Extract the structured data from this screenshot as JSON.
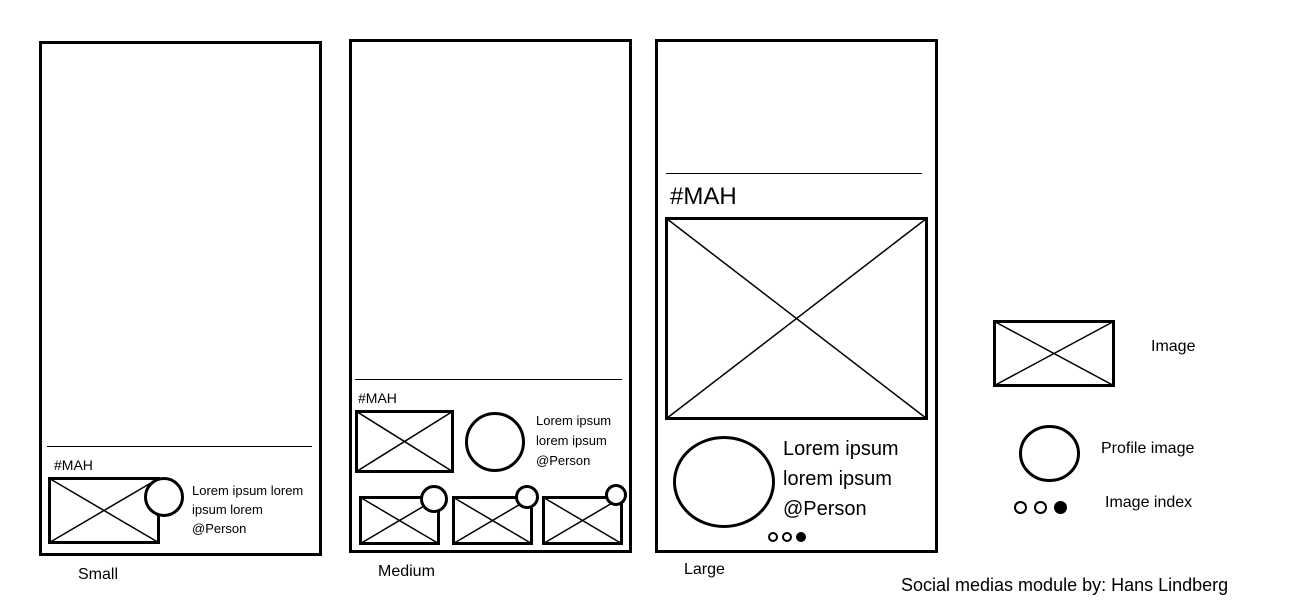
{
  "variants": {
    "small": {
      "caption": "Small",
      "hashtag": "#MAH",
      "text_lines": [
        "Lorem ipsum lorem",
        "ipsum lorem",
        "@Person"
      ]
    },
    "medium": {
      "caption": "Medium",
      "hashtag": "#MAH",
      "text_lines": [
        "Lorem ipsum",
        "lorem ipsum",
        "@Person"
      ]
    },
    "large": {
      "caption": "Large",
      "hashtag": "#MAH",
      "text_lines": [
        "Lorem ipsum",
        "lorem ipsum",
        "@Person"
      ],
      "image_index": {
        "count": 3,
        "active": 3
      }
    }
  },
  "legend": {
    "image": "Image",
    "profile_image": "Profile image",
    "image_index": "Image index",
    "image_index_dots": {
      "count": 3,
      "active": 3
    }
  },
  "credit": "Social medias module by: Hans Lindberg"
}
